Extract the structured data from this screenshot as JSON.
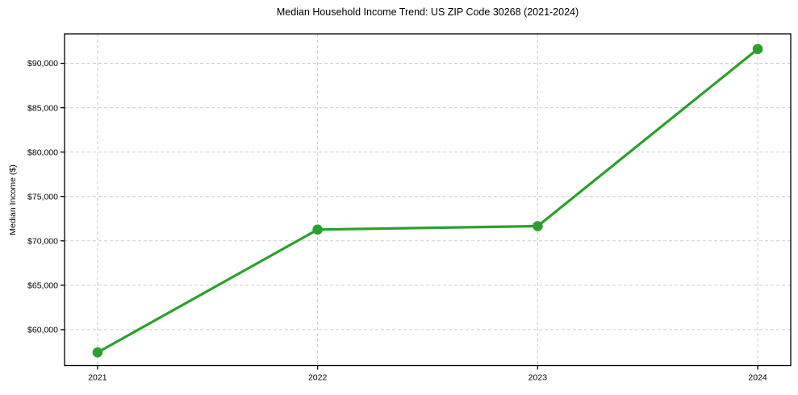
{
  "chart_data": {
    "type": "line",
    "title": "Median Household Income Trend: US ZIP Code 30268 (2021-2024)",
    "xlabel": "",
    "ylabel": "Median Income ($)",
    "x": [
      2021,
      2022,
      2023,
      2024
    ],
    "xtick_labels": [
      "2021",
      "2022",
      "2023",
      "2024"
    ],
    "series": [
      {
        "name": "Median Household Income",
        "values": [
          57430,
          71270,
          71660,
          91610
        ]
      }
    ],
    "yticks": [
      60000,
      65000,
      70000,
      75000,
      80000,
      85000,
      90000
    ],
    "ytick_labels": [
      "$60,000",
      "$65,000",
      "$70,000",
      "$75,000",
      "$80,000",
      "$85,000",
      "$90,000"
    ],
    "xlim": [
      2020.85,
      2024.15
    ],
    "ylim": [
      55950,
      93320
    ],
    "grid": true,
    "grid_style": "dashed",
    "legend_position": "none",
    "colors": {
      "line": "#2ca02c",
      "marker": "#2ca02c",
      "grid": "#cccccc",
      "spine": "#000000",
      "background": "#ffffff"
    }
  }
}
